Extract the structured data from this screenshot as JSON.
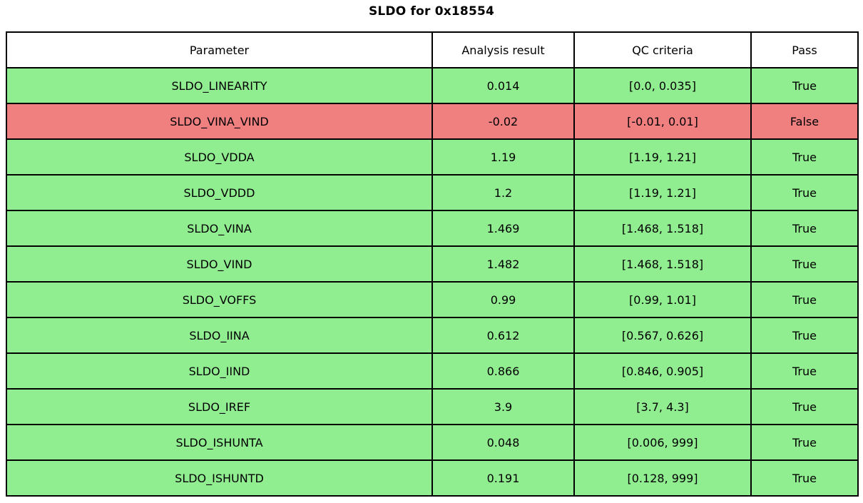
{
  "title": "SLDO for 0x18554",
  "colors": {
    "pass_row": "#90ee90",
    "fail_row": "#f08080",
    "header_bg": "#ffffff",
    "border": "#000000",
    "text": "#000000"
  },
  "chart_data": {
    "type": "table",
    "title": "SLDO for 0x18554",
    "columns": [
      "Parameter",
      "Analysis result",
      "QC criteria",
      "Pass"
    ],
    "rows": [
      {
        "parameter": "SLDO_LINEARITY",
        "result": "0.014",
        "criteria": "[0.0, 0.035]",
        "pass": "True",
        "status": "pass"
      },
      {
        "parameter": "SLDO_VINA_VIND",
        "result": "-0.02",
        "criteria": "[-0.01, 0.01]",
        "pass": "False",
        "status": "fail"
      },
      {
        "parameter": "SLDO_VDDA",
        "result": "1.19",
        "criteria": "[1.19, 1.21]",
        "pass": "True",
        "status": "pass"
      },
      {
        "parameter": "SLDO_VDDD",
        "result": "1.2",
        "criteria": "[1.19, 1.21]",
        "pass": "True",
        "status": "pass"
      },
      {
        "parameter": "SLDO_VINA",
        "result": "1.469",
        "criteria": "[1.468, 1.518]",
        "pass": "True",
        "status": "pass"
      },
      {
        "parameter": "SLDO_VIND",
        "result": "1.482",
        "criteria": "[1.468, 1.518]",
        "pass": "True",
        "status": "pass"
      },
      {
        "parameter": "SLDO_VOFFS",
        "result": "0.99",
        "criteria": "[0.99, 1.01]",
        "pass": "True",
        "status": "pass"
      },
      {
        "parameter": "SLDO_IINA",
        "result": "0.612",
        "criteria": "[0.567, 0.626]",
        "pass": "True",
        "status": "pass"
      },
      {
        "parameter": "SLDO_IIND",
        "result": "0.866",
        "criteria": "[0.846, 0.905]",
        "pass": "True",
        "status": "pass"
      },
      {
        "parameter": "SLDO_IREF",
        "result": "3.9",
        "criteria": "[3.7, 4.3]",
        "pass": "True",
        "status": "pass"
      },
      {
        "parameter": "SLDO_ISHUNTA",
        "result": "0.048",
        "criteria": "[0.006, 999]",
        "pass": "True",
        "status": "pass"
      },
      {
        "parameter": "SLDO_ISHUNTD",
        "result": "0.191",
        "criteria": "[0.128, 999]",
        "pass": "True",
        "status": "pass"
      }
    ]
  }
}
